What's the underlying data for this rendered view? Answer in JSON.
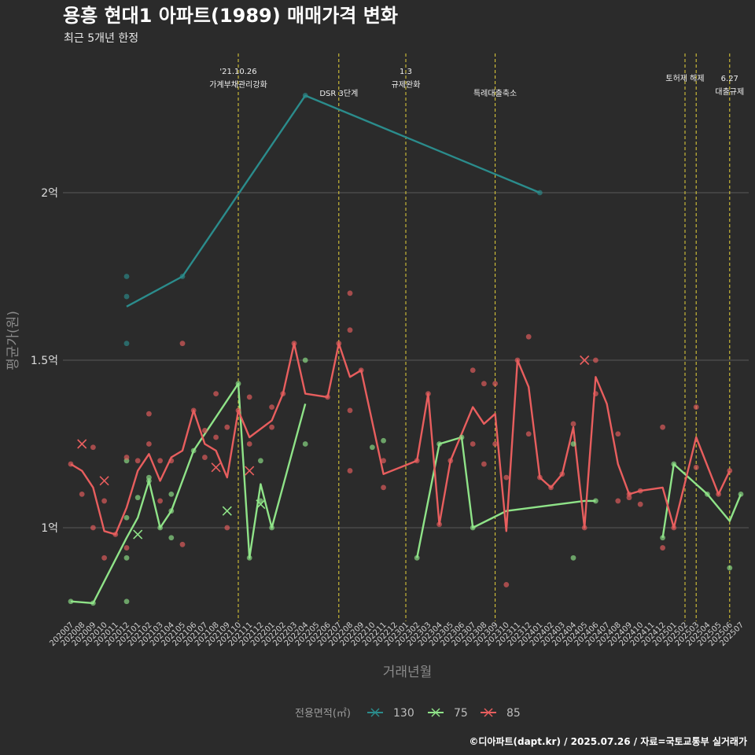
{
  "header": {
    "title": "용흥 현대1 아파트(1989) 매매가격 변화",
    "subtitle": "최근 5개년 한정"
  },
  "caption": "©디아파트(dapt.kr) / 2025.07.26 / 자료=국토교통부 실거래가",
  "colors": {
    "background": "#2b2b2b",
    "grid": "#5a5a5a",
    "event_line": "#e6d23a",
    "series_130": "#2b8c8c",
    "series_75": "#8fe388",
    "series_85": "#e85e5e"
  },
  "chart_data": {
    "type": "line",
    "xlabel": "거래년월",
    "ylabel": "평균가(원)",
    "y_ticks": [
      {
        "value": 1.0,
        "label": "1억"
      },
      {
        "value": 1.5,
        "label": "1.5억"
      },
      {
        "value": 2.0,
        "label": "2억"
      }
    ],
    "y_unit": "억원",
    "ylim": [
      0.72,
      2.35
    ],
    "grid": "horizontal major lines",
    "x_categories": [
      "202007",
      "202008",
      "202009",
      "202010",
      "202011",
      "202012",
      "202101",
      "202102",
      "202103",
      "202104",
      "202105",
      "202106",
      "202107",
      "202108",
      "202109",
      "202110",
      "202111",
      "202112",
      "202201",
      "202202",
      "202203",
      "202204",
      "202205",
      "202206",
      "202207",
      "202208",
      "202209",
      "202210",
      "202211",
      "202212",
      "202301",
      "202302",
      "202303",
      "202304",
      "202305",
      "202306",
      "202307",
      "202308",
      "202309",
      "202310",
      "202311",
      "202312",
      "202401",
      "202402",
      "202403",
      "202404",
      "202405",
      "202406",
      "202407",
      "202408",
      "202409",
      "202410",
      "202411",
      "202412",
      "202501",
      "202502",
      "202503",
      "202504",
      "202505",
      "202506",
      "202507"
    ],
    "events": [
      {
        "x": "202110",
        "label": "'21.10.26\n가계부채관리강화",
        "label_row": 0
      },
      {
        "x": "202207",
        "label": "DSR 3단계",
        "label_row": 2
      },
      {
        "x": "202301",
        "label": "1.3\n규제완화",
        "label_row": 0
      },
      {
        "x": "202309",
        "label": "특례대출축소",
        "label_row": 2
      },
      {
        "x": "202502",
        "label": "토허제 해제",
        "label_row": 1
      },
      {
        "x": "202503",
        "label": "",
        "label_row": 1
      },
      {
        "x": "202506",
        "label": "6.27\n대출규제",
        "label_row": 1
      }
    ],
    "legend": {
      "title": "전용면적(㎡)",
      "position": "bottom"
    },
    "series": [
      {
        "name": "130",
        "color": "#2b8c8c",
        "line": [
          [
            "202012",
            1.66
          ],
          [
            "202105",
            1.75
          ],
          [
            "202204",
            2.29
          ],
          [
            "202401",
            2.0
          ]
        ],
        "points": [
          [
            "202012",
            1.75
          ],
          [
            "202012",
            1.69
          ],
          [
            "202012",
            1.55
          ],
          [
            "202105",
            1.75
          ],
          [
            "202204",
            2.29
          ],
          [
            "202401",
            2.0
          ]
        ],
        "cancelled": []
      },
      {
        "name": "75",
        "color": "#8fe388",
        "line": [
          [
            "202007",
            0.78
          ],
          [
            "202009",
            0.775
          ],
          [
            "202012",
            0.97
          ],
          [
            "202101",
            1.03
          ],
          [
            "202102",
            1.14
          ],
          [
            "202103",
            1.0
          ],
          [
            "202104",
            1.05
          ],
          [
            "202106",
            1.23
          ],
          [
            "202110",
            1.43
          ],
          [
            "202111",
            0.91
          ],
          [
            "202112",
            1.13
          ],
          [
            "202201",
            1.0
          ],
          [
            "202204",
            1.37
          ],
          null,
          [
            "202302",
            0.91
          ],
          [
            "202304",
            1.25
          ],
          [
            "202306",
            1.27
          ],
          [
            "202307",
            1.0
          ],
          [
            "202310",
            1.05
          ],
          [
            "202405",
            1.08
          ],
          [
            "202406",
            1.08
          ],
          null,
          [
            "202412",
            0.97
          ],
          [
            "202501",
            1.19
          ],
          [
            "202504",
            1.1
          ],
          [
            "202506",
            1.02
          ],
          [
            "202507",
            1.1
          ]
        ],
        "points": [
          [
            "202007",
            0.78
          ],
          [
            "202009",
            0.775
          ],
          [
            "202012",
            1.2
          ],
          [
            "202012",
            1.03
          ],
          [
            "202012",
            0.91
          ],
          [
            "202012",
            0.78
          ],
          [
            "202101",
            1.09
          ],
          [
            "202102",
            1.14
          ],
          [
            "202102",
            1.15
          ],
          [
            "202103",
            1.0
          ],
          [
            "202104",
            1.05
          ],
          [
            "202104",
            1.1
          ],
          [
            "202104",
            0.97
          ],
          [
            "202106",
            1.23
          ],
          [
            "202110",
            1.43
          ],
          [
            "202111",
            0.91
          ],
          [
            "202112",
            1.2
          ],
          [
            "202112",
            1.08
          ],
          [
            "202201",
            1.0
          ],
          [
            "202204",
            1.5
          ],
          [
            "202204",
            1.25
          ],
          [
            "202210",
            1.24
          ],
          [
            "202211",
            1.26
          ],
          [
            "202302",
            0.91
          ],
          [
            "202304",
            1.25
          ],
          [
            "202306",
            1.27
          ],
          [
            "202307",
            1.0
          ],
          [
            "202404",
            1.25
          ],
          [
            "202404",
            0.91
          ],
          [
            "202406",
            1.08
          ],
          [
            "202412",
            0.97
          ],
          [
            "202501",
            1.19
          ],
          [
            "202504",
            1.1
          ],
          [
            "202506",
            0.88
          ],
          [
            "202507",
            1.1
          ]
        ],
        "cancelled": [
          [
            "202101",
            0.98
          ],
          [
            "202112",
            1.07
          ],
          [
            "202109",
            1.05
          ]
        ]
      },
      {
        "name": "85",
        "color": "#e85e5e",
        "line": [
          [
            "202007",
            1.19
          ],
          [
            "202008",
            1.17
          ],
          [
            "202009",
            1.12
          ],
          [
            "202010",
            0.99
          ],
          [
            "202011",
            0.98
          ],
          [
            "202012",
            1.06
          ],
          [
            "202101",
            1.17
          ],
          [
            "202102",
            1.22
          ],
          [
            "202103",
            1.14
          ],
          [
            "202104",
            1.21
          ],
          [
            "202105",
            1.23
          ],
          [
            "202106",
            1.35
          ],
          [
            "202107",
            1.25
          ],
          [
            "202108",
            1.23
          ],
          [
            "202109",
            1.15
          ],
          [
            "202110",
            1.35
          ],
          [
            "202111",
            1.27
          ],
          [
            "202201",
            1.32
          ],
          [
            "202202",
            1.4
          ],
          [
            "202203",
            1.55
          ],
          [
            "202204",
            1.4
          ],
          [
            "202206",
            1.39
          ],
          [
            "202207",
            1.55
          ],
          [
            "202208",
            1.45
          ],
          [
            "202209",
            1.47
          ],
          [
            "202211",
            1.16
          ],
          [
            "202302",
            1.2
          ],
          [
            "202303",
            1.4
          ],
          [
            "202304",
            1.01
          ],
          [
            "202305",
            1.2
          ],
          [
            "202307",
            1.36
          ],
          [
            "202308",
            1.31
          ],
          [
            "202309",
            1.34
          ],
          [
            "202310",
            0.99
          ],
          [
            "202311",
            1.5
          ],
          [
            "202312",
            1.42
          ],
          [
            "202401",
            1.15
          ],
          [
            "202402",
            1.12
          ],
          [
            "202403",
            1.16
          ],
          [
            "202404",
            1.3
          ],
          [
            "202405",
            1.0
          ],
          [
            "202406",
            1.45
          ],
          [
            "202407",
            1.37
          ],
          [
            "202408",
            1.19
          ],
          [
            "202409",
            1.1
          ],
          [
            "202410",
            1.11
          ],
          [
            "202412",
            1.12
          ],
          [
            "202501",
            1.0
          ],
          [
            "202503",
            1.27
          ],
          [
            "202505",
            1.1
          ],
          [
            "202506",
            1.17
          ]
        ],
        "points": [
          [
            "202007",
            1.19
          ],
          [
            "202008",
            1.1
          ],
          [
            "202009",
            1.24
          ],
          [
            "202009",
            1.0
          ],
          [
            "202010",
            1.08
          ],
          [
            "202010",
            0.91
          ],
          [
            "202011",
            0.98
          ],
          [
            "202012",
            1.21
          ],
          [
            "202012",
            0.94
          ],
          [
            "202101",
            1.2
          ],
          [
            "202102",
            1.34
          ],
          [
            "202102",
            1.25
          ],
          [
            "202103",
            1.2
          ],
          [
            "202103",
            1.08
          ],
          [
            "202104",
            1.2
          ],
          [
            "202105",
            1.55
          ],
          [
            "202105",
            0.95
          ],
          [
            "202106",
            1.35
          ],
          [
            "202107",
            1.29
          ],
          [
            "202107",
            1.21
          ],
          [
            "202108",
            1.4
          ],
          [
            "202108",
            1.27
          ],
          [
            "202109",
            1.3
          ],
          [
            "202109",
            1.0
          ],
          [
            "202110",
            1.35
          ],
          [
            "202111",
            1.39
          ],
          [
            "202111",
            1.25
          ],
          [
            "202201",
            1.36
          ],
          [
            "202201",
            1.3
          ],
          [
            "202202",
            1.4
          ],
          [
            "202203",
            1.55
          ],
          [
            "202206",
            1.39
          ],
          [
            "202207",
            1.55
          ],
          [
            "202208",
            1.7
          ],
          [
            "202208",
            1.59
          ],
          [
            "202208",
            1.35
          ],
          [
            "202208",
            1.17
          ],
          [
            "202209",
            1.47
          ],
          [
            "202211",
            1.2
          ],
          [
            "202211",
            1.12
          ],
          [
            "202302",
            1.2
          ],
          [
            "202303",
            1.4
          ],
          [
            "202304",
            1.01
          ],
          [
            "202305",
            1.2
          ],
          [
            "202307",
            1.47
          ],
          [
            "202307",
            1.25
          ],
          [
            "202308",
            1.43
          ],
          [
            "202308",
            1.19
          ],
          [
            "202309",
            1.43
          ],
          [
            "202309",
            1.25
          ],
          [
            "202310",
            1.15
          ],
          [
            "202310",
            0.83
          ],
          [
            "202311",
            1.5
          ],
          [
            "202312",
            1.57
          ],
          [
            "202312",
            1.28
          ],
          [
            "202401",
            1.15
          ],
          [
            "202402",
            1.12
          ],
          [
            "202403",
            1.16
          ],
          [
            "202404",
            1.31
          ],
          [
            "202405",
            1.0
          ],
          [
            "202406",
            1.5
          ],
          [
            "202406",
            1.4
          ],
          [
            "202408",
            1.28
          ],
          [
            "202408",
            1.08
          ],
          [
            "202409",
            1.1
          ],
          [
            "202409",
            1.09
          ],
          [
            "202410",
            1.11
          ],
          [
            "202410",
            1.07
          ],
          [
            "202412",
            1.3
          ],
          [
            "202412",
            0.94
          ],
          [
            "202501",
            1.0
          ],
          [
            "202503",
            1.36
          ],
          [
            "202503",
            1.18
          ],
          [
            "202505",
            1.1
          ],
          [
            "202506",
            1.17
          ]
        ],
        "cancelled": [
          [
            "202008",
            1.25
          ],
          [
            "202010",
            1.14
          ],
          [
            "202108",
            1.18
          ],
          [
            "202111",
            1.17
          ],
          [
            "202405",
            1.5
          ]
        ]
      }
    ]
  }
}
